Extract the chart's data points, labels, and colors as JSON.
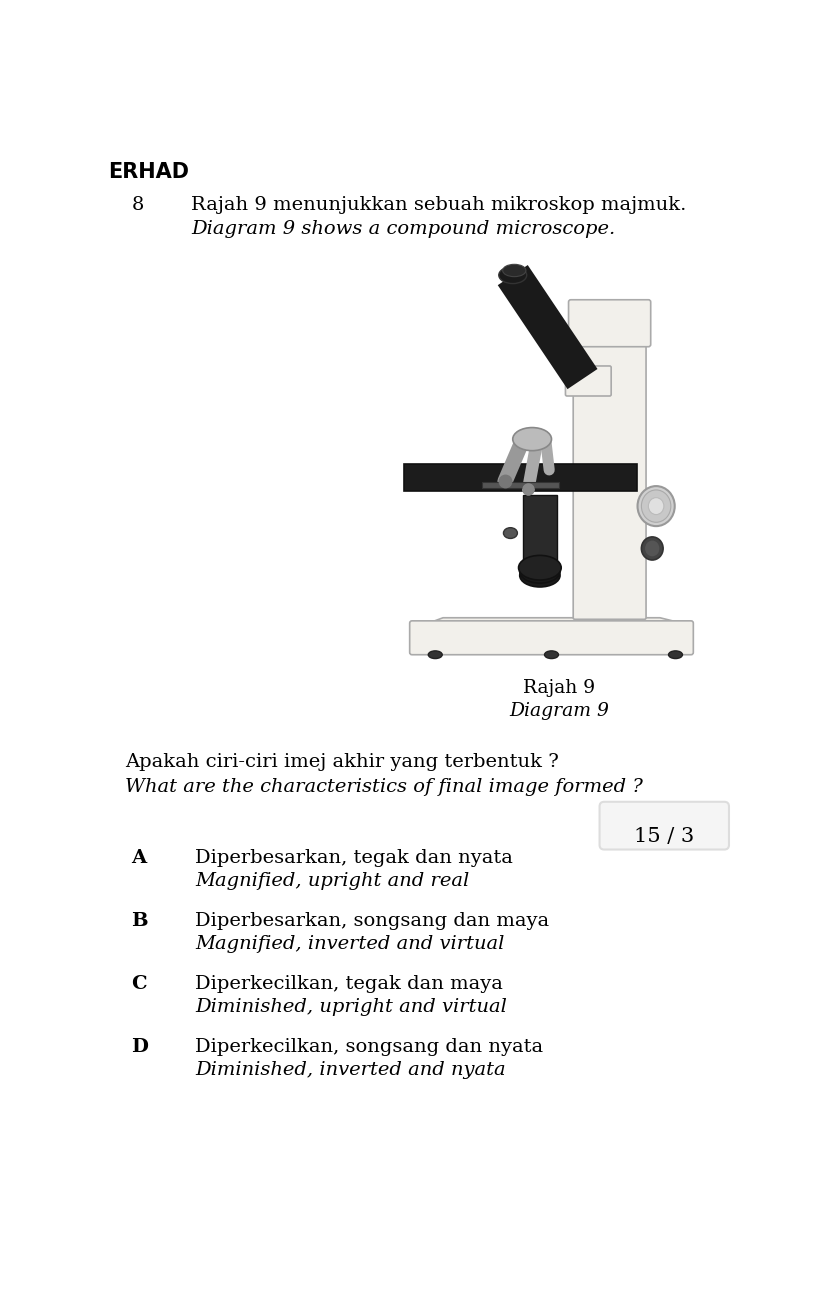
{
  "background_color": "#ffffff",
  "header_text": "ERHAD",
  "question_number": "8",
  "malay_question": "Rajah 9 menunjukkan sebuah mikroskop majmuk.",
  "english_question": "Diagram 9 shows a compound microscope.",
  "diagram_label_malay": "Rajah 9",
  "diagram_label_english": "Diagram 9",
  "question_malay": "Apakah ciri-ciri imej akhir yang terbentuk ?",
  "question_english": "What are the characteristics of final image formed ?",
  "page_number": "15 / 3",
  "options": [
    {
      "letter": "A",
      "malay": "Diperbesarkan, tegak dan nyata",
      "english": "Magnified, upright and real"
    },
    {
      "letter": "B",
      "malay": "Diperbesarkan, songsang dan maya",
      "english": "Magnified, inverted and virtual"
    },
    {
      "letter": "C",
      "malay": "Diperkecilkan, tegak dan maya",
      "english": "Diminished, upright and virtual"
    },
    {
      "letter": "D",
      "malay": "Diperkecilkan, songsang dan nyata",
      "english": "Diminished, inverted and nyata"
    }
  ],
  "text_color": "#000000",
  "header_fontsize": 15,
  "body_fontsize": 14,
  "italic_fontsize": 14,
  "option_letter_fontsize": 14,
  "page_num_fontsize": 15,
  "mic_color_white": "#f2f0eb",
  "mic_color_dark": "#1a1a1a",
  "mic_color_grey": "#888888",
  "mic_color_black": "#111111",
  "mic_color_stage": "#1c1c1c",
  "mic_color_lens": "#999999"
}
